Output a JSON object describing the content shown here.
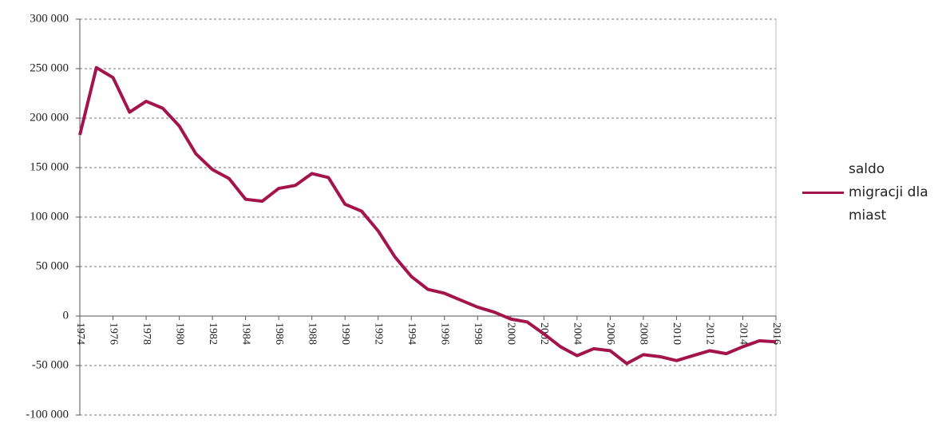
{
  "chart_data": {
    "type": "line",
    "x": [
      1974,
      1975,
      1976,
      1977,
      1978,
      1979,
      1980,
      1981,
      1982,
      1983,
      1984,
      1985,
      1986,
      1987,
      1988,
      1989,
      1990,
      1991,
      1992,
      1993,
      1994,
      1995,
      1996,
      1997,
      1998,
      1999,
      2000,
      2001,
      2002,
      2003,
      2004,
      2005,
      2006,
      2007,
      2008,
      2009,
      2010,
      2011,
      2012,
      2013,
      2014,
      2015,
      2016
    ],
    "series": [
      {
        "name": "saldo migracji dla miast",
        "color": "#a3144d",
        "values": [
          183000,
          251000,
          241000,
          206000,
          217000,
          210000,
          192000,
          164000,
          148000,
          139000,
          118000,
          116000,
          129000,
          132000,
          144000,
          140000,
          113000,
          106000,
          86000,
          60000,
          40000,
          27000,
          23000,
          16000,
          9000,
          4000,
          -3000,
          -6000,
          -18000,
          -31000,
          -40000,
          -33000,
          -35000,
          -48000,
          -39000,
          -41000,
          -45000,
          -40000,
          -35000,
          -38000,
          -31000,
          -25000,
          -26000
        ]
      }
    ],
    "xlim": [
      1974,
      2016
    ],
    "xticks": [
      1974,
      1976,
      1978,
      1980,
      1982,
      1984,
      1986,
      1988,
      1990,
      1992,
      1994,
      1996,
      1998,
      2000,
      2002,
      2004,
      2006,
      2008,
      2010,
      2012,
      2014,
      2016
    ],
    "ylim": [
      -100000,
      300000
    ],
    "yticks": [
      {
        "value": -100000,
        "label": "-100 000"
      },
      {
        "value": -50000,
        "label": "-50 000"
      },
      {
        "value": 0,
        "label": "0"
      },
      {
        "value": 50000,
        "label": "50 000"
      },
      {
        "value": 100000,
        "label": "100 000"
      },
      {
        "value": 150000,
        "label": "150 000"
      },
      {
        "value": 200000,
        "label": "200 000"
      },
      {
        "value": 250000,
        "label": "250 000"
      },
      {
        "value": 300000,
        "label": "300 000"
      }
    ],
    "grid": true
  }
}
